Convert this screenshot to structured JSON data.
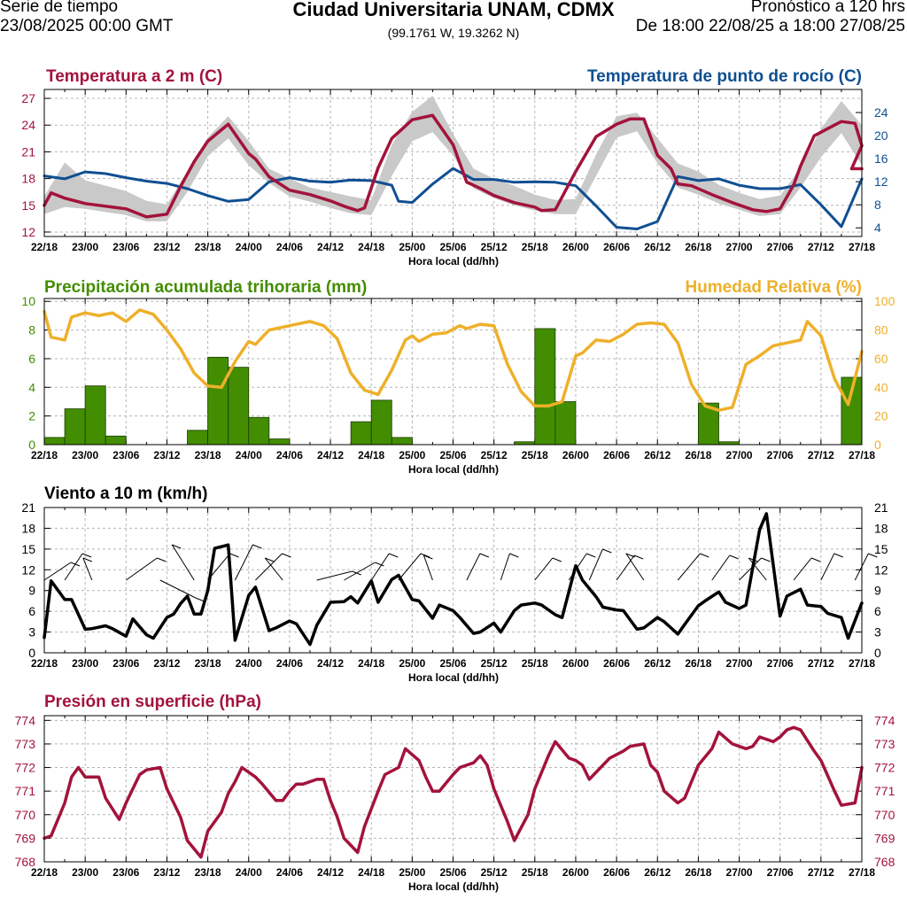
{
  "header": {
    "left_line1": "Serie de tiempo",
    "left_line2": "23/08/2025 00:00 GMT",
    "title": "Ciudad Universitaria UNAM, CDMX",
    "coords": "(99.1761 W, 19.3262 N)",
    "right_line1": "Pronóstico a 120 hrs",
    "right_line2": "De 18:00 22/08/25 a 18:00 27/08/25"
  },
  "colors": {
    "temperature": "#a3133b",
    "dewpoint": "#104f92",
    "band": "#c9c9c9",
    "precip": "#438d00",
    "humidity": "#eeb02a",
    "wind": "#000000",
    "pressure": "#a3133b"
  },
  "chart_data": [
    {
      "type": "line",
      "title": "Temperatura a 2 m (C)",
      "title_right": "Temperatura de punto de rocío (C)",
      "xlabel": "Hora local (dd/hh)",
      "x_ticks": [
        "22/18",
        "23/00",
        "23/06",
        "23/12",
        "23/18",
        "24/00",
        "24/06",
        "24/12",
        "24/18",
        "25/00",
        "25/06",
        "25/12",
        "25/18",
        "26/00",
        "26/06",
        "26/12",
        "26/18",
        "27/00",
        "27/06",
        "27/12",
        "27/18"
      ],
      "x_range_hours": [
        0,
        120
      ],
      "left_axis": {
        "ylim": [
          11.5,
          28
        ],
        "ticks": [
          12,
          15,
          18,
          21,
          24,
          27
        ]
      },
      "right_axis": {
        "ylim": [
          2.5,
          28
        ],
        "ticks": [
          4,
          8,
          12,
          16,
          20,
          24
        ]
      },
      "series": [
        {
          "name": "Temperatura a 2 m",
          "axis": "left",
          "x": [
            0,
            1,
            3,
            6,
            9,
            12,
            15,
            18,
            20,
            22,
            24,
            27,
            30,
            31,
            33,
            36,
            39,
            42,
            44,
            46,
            47,
            49,
            51,
            54,
            57,
            60,
            62,
            64,
            66,
            69,
            72,
            73,
            75,
            78,
            81,
            84,
            86,
            88,
            90,
            92,
            93,
            95,
            98,
            101,
            104,
            106,
            108,
            110,
            111,
            113,
            116,
            117,
            119,
            120
          ],
          "values": [
            15.0,
            16.4,
            15.8,
            15.2,
            14.9,
            14.6,
            13.7,
            14.0,
            17.1,
            19.9,
            22.2,
            24.1,
            20.8,
            20.2,
            18.2,
            16.7,
            16.2,
            15.5,
            14.9,
            14.4,
            14.7,
            19.2,
            22.5,
            24.6,
            25.1,
            21.8,
            17.6,
            16.9,
            16.1,
            15.3,
            14.8,
            14.4,
            14.5,
            18.8,
            22.7,
            24.1,
            24.7,
            24.7,
            20.6,
            19.1,
            17.4,
            17.2,
            16.2,
            15.3,
            14.5,
            14.3,
            14.6,
            17.3,
            19.4,
            22.8,
            24.0,
            24.4,
            24.2,
            21.7
          ],
          "values_end": [
            [
              118.5,
              19.1
            ]
          ]
        },
        {
          "name": "Temperatura de punto de rocío",
          "axis": "right",
          "x": [
            0,
            3,
            6,
            9,
            12,
            15,
            18,
            21,
            24,
            27,
            30,
            33,
            36,
            39,
            42,
            45,
            48,
            51,
            52,
            54,
            57,
            60,
            63,
            66,
            69,
            72,
            75,
            78,
            81,
            84,
            87,
            90,
            93,
            96,
            99,
            102,
            105,
            108,
            111,
            114,
            117,
            120
          ],
          "values": [
            13,
            12.5,
            13.7,
            13.4,
            12.7,
            12.1,
            11.7,
            10.8,
            9.6,
            8.6,
            8.9,
            12.0,
            12.7,
            12.1,
            11.9,
            12.3,
            12.2,
            11.4,
            8.6,
            8.4,
            11.6,
            14.3,
            12.4,
            12.4,
            11.9,
            12.0,
            11.9,
            11.3,
            7.8,
            4.1,
            3.8,
            5.1,
            12.9,
            12.2,
            12.5,
            11.4,
            10.8,
            10.8,
            11.5,
            8.0,
            4.2,
            12.5
          ]
        },
        {
          "name": "Rango (banda gris)",
          "axis": "left",
          "role": "band",
          "x": [
            0,
            3,
            6,
            12,
            15,
            18,
            21,
            24,
            27,
            30,
            33,
            36,
            39,
            42,
            45,
            48,
            51,
            54,
            57,
            60,
            63,
            66,
            69,
            72,
            75,
            78,
            81,
            84,
            87,
            90,
            93,
            96,
            99,
            102,
            105,
            108,
            111,
            114,
            117,
            120
          ],
          "lower": [
            14.0,
            14.8,
            14.6,
            13.9,
            13.2,
            13.2,
            16.5,
            20.5,
            22.5,
            19.5,
            17.5,
            16.0,
            15.4,
            14.7,
            14.1,
            13.9,
            18.3,
            22.2,
            23.2,
            20.6,
            16.9,
            15.8,
            15.0,
            14.4,
            14.0,
            14.0,
            18.3,
            22.6,
            23.3,
            19.7,
            17.0,
            16.2,
            15.2,
            14.5,
            13.8,
            14.0,
            17.0,
            20.4,
            23.1,
            19.5
          ],
          "upper": [
            16.0,
            19.8,
            17.8,
            16.6,
            15.5,
            15.1,
            18.8,
            22.6,
            25.0,
            22.2,
            19.1,
            18.0,
            17.0,
            16.5,
            16.0,
            15.6,
            21.8,
            25.5,
            27.3,
            23.0,
            19.1,
            18.0,
            17.2,
            16.2,
            15.6,
            15.7,
            20.7,
            25.0,
            25.4,
            22.5,
            19.7,
            18.8,
            17.3,
            16.4,
            15.7,
            16.1,
            19.2,
            23.6,
            26.7,
            24.0
          ]
        }
      ]
    },
    {
      "type": "bar",
      "title": "Precipitación acumulada trihoraria (mm)",
      "title_right": "Humedad Relativa (%)",
      "xlabel": "Hora local (dd/hh)",
      "x_ticks": [
        "22/18",
        "23/00",
        "23/06",
        "23/12",
        "23/18",
        "24/00",
        "24/06",
        "24/12",
        "24/18",
        "25/00",
        "25/06",
        "25/12",
        "25/18",
        "26/00",
        "26/06",
        "26/12",
        "26/18",
        "27/00",
        "27/06",
        "27/12",
        "27/18"
      ],
      "left_axis": {
        "ylim": [
          0,
          10.2
        ],
        "ticks": [
          0,
          2,
          4,
          6,
          8,
          10
        ]
      },
      "right_axis": {
        "ylim": [
          0,
          102
        ],
        "ticks": [
          0,
          20,
          40,
          60,
          80,
          100
        ]
      },
      "bars": {
        "name": "Precipitación acumulada trihoraria",
        "start_hours": [
          0,
          3,
          6,
          9,
          21,
          24,
          27,
          30,
          33,
          45,
          48,
          51,
          69,
          72,
          75,
          78,
          96,
          99,
          117
        ],
        "values": [
          0.5,
          2.5,
          4.1,
          0.6,
          1.0,
          6.1,
          5.4,
          1.9,
          0.4,
          1.6,
          3.1,
          0.5,
          0.2,
          8.1,
          3.0,
          0.0,
          2.9,
          0.2,
          4.7
        ]
      },
      "series": [
        {
          "name": "Humedad Relativa",
          "axis": "right",
          "x": [
            0,
            1,
            3,
            4,
            6,
            8,
            10,
            12,
            14,
            16,
            18,
            20,
            22,
            24,
            26,
            28,
            30,
            31,
            33,
            35,
            37,
            39,
            41,
            43,
            45,
            47,
            49,
            51,
            53,
            54,
            55,
            57,
            59,
            61,
            62,
            64,
            66,
            68,
            70,
            72,
            74,
            76,
            78,
            79,
            81,
            83,
            85,
            87,
            89,
            91,
            93,
            95,
            97,
            99,
            101,
            103,
            105,
            107,
            109,
            111,
            112,
            114,
            116,
            118,
            120
          ],
          "values": [
            93,
            75,
            73,
            89,
            92,
            90,
            92,
            86,
            94,
            91,
            80,
            67,
            50,
            41,
            40,
            58,
            72,
            70,
            80,
            82,
            84,
            86,
            83,
            74,
            50,
            38,
            35,
            52,
            73,
            76,
            72,
            77,
            78,
            83,
            81,
            84,
            83,
            56,
            37,
            27,
            27,
            30,
            62,
            64,
            73,
            72,
            77,
            84,
            85,
            84,
            71,
            42,
            27,
            24,
            26,
            56,
            62,
            69,
            71,
            73,
            86,
            76,
            46,
            28,
            65
          ]
        }
      ]
    },
    {
      "type": "line",
      "title": "Viento a 10 m (km/h)",
      "xlabel": "Hora local (dd/hh)",
      "x_ticks": [
        "22/18",
        "23/00",
        "23/06",
        "23/12",
        "23/18",
        "24/00",
        "24/06",
        "24/12",
        "24/18",
        "25/00",
        "25/06",
        "25/12",
        "25/18",
        "26/00",
        "26/06",
        "26/12",
        "26/18",
        "27/00",
        "27/06",
        "27/12",
        "27/18"
      ],
      "ylim": [
        0,
        21
      ],
      "ticks": [
        0,
        3,
        6,
        9,
        12,
        15,
        18,
        21
      ],
      "series": [
        {
          "name": "Viento a 10 m",
          "x": [
            0,
            1,
            3,
            4,
            6,
            7,
            9,
            10,
            12,
            13,
            15,
            16,
            18,
            19,
            20,
            21,
            22,
            23,
            24,
            25,
            27,
            28,
            30,
            31,
            33,
            34,
            36,
            37,
            39,
            40,
            42,
            44,
            45,
            46,
            48,
            49,
            51,
            52,
            54,
            55,
            57,
            58,
            60,
            61,
            63,
            64,
            66,
            67,
            69,
            70,
            72,
            73,
            75,
            76,
            78,
            79,
            81,
            82,
            84,
            85,
            87,
            88,
            90,
            91,
            93,
            94,
            96,
            97,
            99,
            100,
            102,
            103,
            105,
            106,
            108,
            109,
            111,
            112,
            114,
            115,
            117,
            118,
            120
          ],
          "values": [
            2.2,
            10.4,
            7.7,
            7.7,
            3.4,
            3.5,
            3.9,
            3.5,
            2.4,
            4.9,
            2.6,
            2.1,
            5.1,
            5.6,
            7.1,
            8.2,
            5.6,
            5.6,
            9.0,
            15.1,
            15.6,
            1.8,
            8.3,
            9.5,
            3.2,
            3.6,
            4.6,
            4.2,
            1.2,
            4.0,
            7.3,
            7.4,
            8.1,
            7.2,
            10.4,
            7.3,
            10.6,
            11.2,
            7.7,
            7.5,
            5.0,
            6.9,
            6.1,
            5.1,
            2.8,
            3.0,
            4.3,
            3.0,
            6.1,
            6.9,
            7.2,
            6.9,
            5.5,
            5.1,
            12.6,
            10.5,
            8.1,
            6.6,
            6.2,
            6.1,
            3.4,
            3.6,
            5.1,
            4.5,
            2.7,
            4.1,
            6.8,
            7.5,
            8.8,
            7.3,
            6.4,
            6.9,
            17.8,
            20.1,
            5.3,
            8.2,
            9.2,
            6.9,
            6.7,
            5.7,
            5.1,
            2.1,
            7.2
          ]
        }
      ],
      "barbs_note": "Barbas de viento (dirección)"
    },
    {
      "type": "line",
      "title": "Presión en superficie (hPa)",
      "xlabel": "Hora local (dd/hh)",
      "x_ticks": [
        "22/18",
        "23/00",
        "23/06",
        "23/12",
        "23/18",
        "24/00",
        "24/06",
        "24/12",
        "24/18",
        "25/00",
        "25/06",
        "25/12",
        "25/18",
        "26/00",
        "26/06",
        "26/12",
        "26/18",
        "27/00",
        "27/06",
        "27/12",
        "27/18"
      ],
      "ylim": [
        768,
        774.2
      ],
      "ticks": [
        768,
        769,
        770,
        771,
        772,
        773,
        774
      ],
      "series": [
        {
          "name": "Presión en superficie",
          "x": [
            0,
            1,
            3,
            4,
            5,
            6,
            8,
            9,
            11,
            12,
            14,
            15,
            17,
            18,
            20,
            21,
            23,
            24,
            26,
            27,
            28,
            29,
            31,
            32,
            34,
            35,
            36,
            37,
            38,
            40,
            41,
            42,
            43,
            44,
            46,
            47,
            49,
            50,
            52,
            53,
            55,
            56,
            57,
            58,
            60,
            61,
            63,
            64,
            65,
            66,
            68,
            69,
            71,
            72,
            74,
            75,
            77,
            78,
            79,
            80,
            82,
            83,
            85,
            86,
            88,
            89,
            90,
            91,
            93,
            94,
            96,
            98,
            99,
            101,
            103,
            104,
            105,
            107,
            108,
            109,
            110,
            111,
            113,
            114,
            116,
            117,
            119,
            120
          ],
          "values": [
            769.0,
            769.1,
            770.5,
            771.6,
            772.0,
            771.6,
            771.6,
            770.7,
            769.8,
            770.5,
            771.7,
            771.9,
            772.0,
            771.1,
            769.9,
            768.9,
            768.2,
            769.3,
            770.1,
            770.9,
            771.4,
            772.0,
            771.6,
            771.3,
            770.6,
            770.6,
            771.0,
            771.3,
            771.3,
            771.5,
            771.5,
            770.6,
            769.9,
            769.0,
            768.4,
            769.5,
            771.0,
            771.7,
            772.0,
            772.8,
            772.3,
            771.6,
            771.0,
            771.0,
            771.7,
            772.0,
            772.2,
            772.5,
            772.1,
            771.1,
            769.7,
            768.9,
            770.0,
            771.1,
            772.5,
            773.1,
            772.4,
            772.3,
            772.1,
            771.5,
            772.1,
            772.4,
            772.7,
            772.9,
            773.0,
            772.1,
            771.8,
            771.0,
            770.5,
            770.7,
            772.1,
            772.8,
            773.5,
            773.0,
            772.8,
            772.9,
            773.3,
            773.1,
            773.3,
            773.6,
            773.7,
            773.6,
            772.7,
            772.3,
            771.0,
            770.4,
            770.5,
            772.0
          ]
        }
      ]
    }
  ]
}
